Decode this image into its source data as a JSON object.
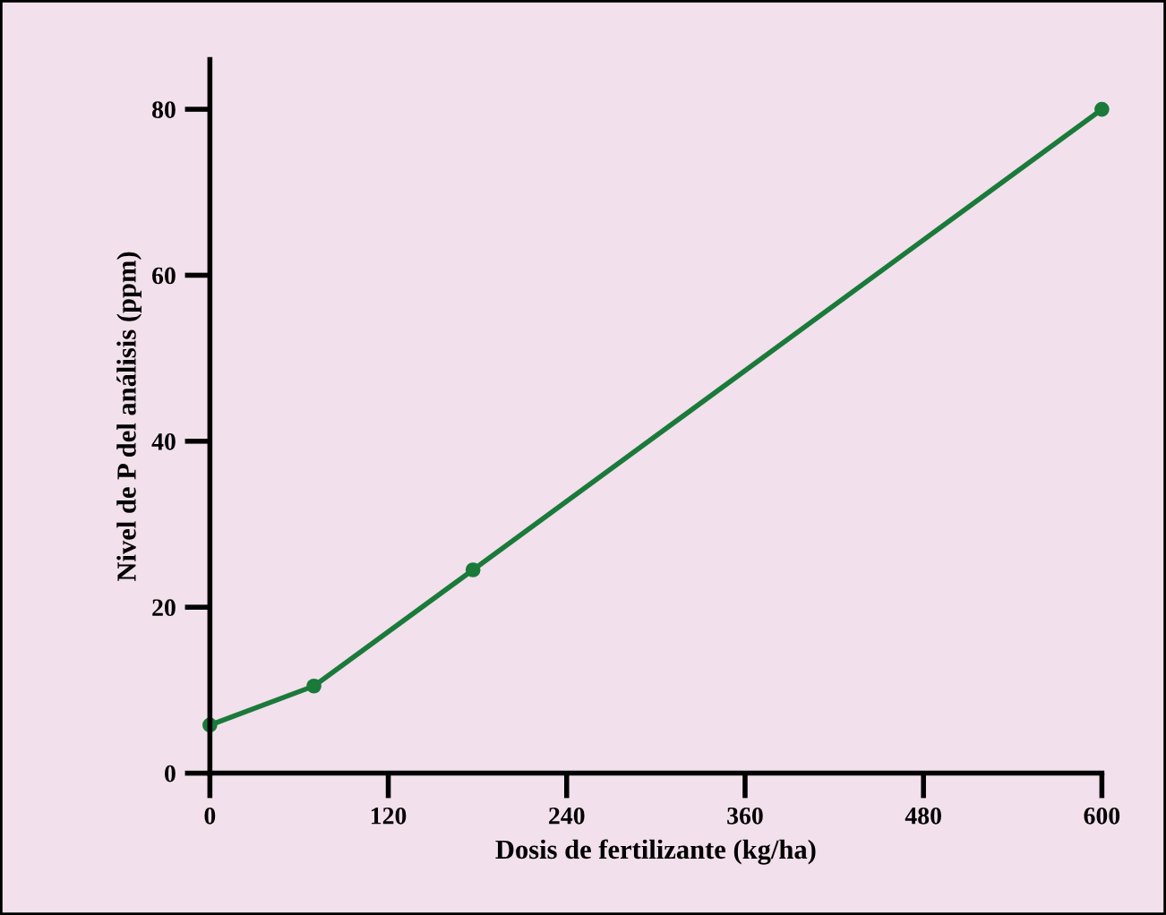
{
  "chart_data": {
    "type": "line",
    "xlabel": "Dosis de fertilizante (kg/ha)",
    "ylabel": "Nivel de P del análisis (ppm)",
    "x": [
      0,
      70,
      177,
      600
    ],
    "series": [
      {
        "color": "#1a7a3a",
        "values": [
          5.8,
          10.5,
          24.5,
          80
        ]
      }
    ],
    "marker": "circle",
    "line_style": "solid",
    "xlim": [
      0,
      600
    ],
    "xticks": [
      0,
      120,
      240,
      360,
      480,
      600
    ],
    "ylim": [
      0,
      86
    ],
    "yticks": [
      0,
      20,
      40,
      60,
      80
    ],
    "grid": false
  }
}
